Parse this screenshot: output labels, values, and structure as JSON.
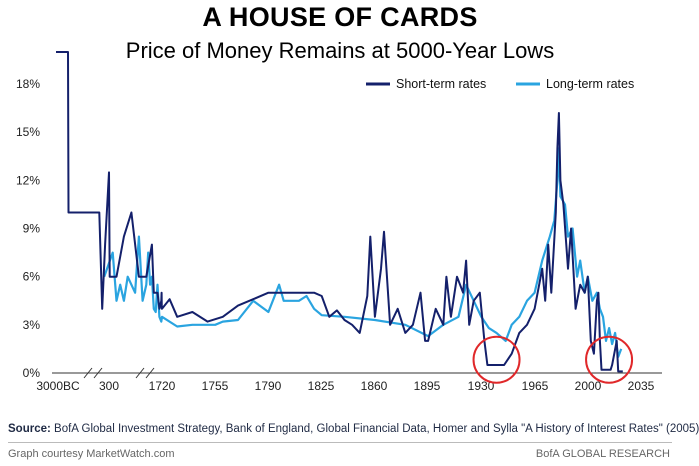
{
  "chart_data": {
    "type": "line",
    "title": "A HOUSE OF CARDS",
    "subtitle": "Price of Money Remains at 5000-Year Lows",
    "xlabel": "",
    "ylabel": "",
    "ylim": [
      0,
      19.5
    ],
    "y_ticks": [
      "0%",
      "3%",
      "6%",
      "9%",
      "12%",
      "15%",
      "18%"
    ],
    "y_tick_values": [
      0,
      3,
      6,
      9,
      12,
      15,
      18
    ],
    "x_ticks": [
      "3000BC",
      "300",
      "1720",
      "1755",
      "1790",
      "1825",
      "1860",
      "1895",
      "1930",
      "1965",
      "2000",
      "2035"
    ],
    "legend": [
      "Short-term rates",
      "Long-term rates"
    ],
    "legend_position": "top-right",
    "grid": false,
    "colors": {
      "short": "#14206b",
      "long": "#2aa4e0",
      "highlight": "#e0282a"
    },
    "series": [
      {
        "name": "Short-term rates",
        "points": [
          [
            -3000,
            20
          ],
          [
            -2300,
            20
          ],
          [
            -2200,
            10
          ],
          [
            -300,
            10
          ],
          [
            0,
            10
          ],
          [
            200,
            10
          ],
          [
            230,
            4
          ],
          [
            260,
            8
          ],
          [
            300,
            12.5
          ],
          [
            320,
            6
          ],
          [
            500,
            6
          ],
          [
            700,
            8.5
          ],
          [
            900,
            10
          ],
          [
            1100,
            6
          ],
          [
            1300,
            6
          ],
          [
            1450,
            8
          ],
          [
            1500,
            5
          ],
          [
            1600,
            5
          ],
          [
            1650,
            4
          ],
          [
            1700,
            4.5
          ],
          [
            1710,
            5
          ],
          [
            1715,
            4
          ],
          [
            1720,
            4
          ],
          [
            1725,
            4.6
          ],
          [
            1730,
            3.5
          ],
          [
            1740,
            3.8
          ],
          [
            1750,
            3.2
          ],
          [
            1760,
            3.5
          ],
          [
            1770,
            4.2
          ],
          [
            1780,
            4.6
          ],
          [
            1790,
            5
          ],
          [
            1800,
            5
          ],
          [
            1810,
            5
          ],
          [
            1820,
            5
          ],
          [
            1825,
            4.8
          ],
          [
            1830,
            3.5
          ],
          [
            1835,
            3.9
          ],
          [
            1840,
            3.3
          ],
          [
            1845,
            3
          ],
          [
            1850,
            2.5
          ],
          [
            1855,
            4.8
          ],
          [
            1857,
            8.5
          ],
          [
            1860,
            3.5
          ],
          [
            1864,
            6.5
          ],
          [
            1866,
            8.8
          ],
          [
            1870,
            3
          ],
          [
            1875,
            4
          ],
          [
            1880,
            2.5
          ],
          [
            1885,
            3
          ],
          [
            1890,
            5
          ],
          [
            1893,
            2
          ],
          [
            1895,
            2
          ],
          [
            1900,
            4
          ],
          [
            1905,
            3
          ],
          [
            1907,
            6
          ],
          [
            1910,
            3.5
          ],
          [
            1914,
            6
          ],
          [
            1918,
            5
          ],
          [
            1920,
            7
          ],
          [
            1922,
            3
          ],
          [
            1925,
            4.5
          ],
          [
            1929,
            5
          ],
          [
            1932,
            2
          ],
          [
            1934,
            0.5
          ],
          [
            1945,
            0.5
          ],
          [
            1950,
            1.2
          ],
          [
            1955,
            2.5
          ],
          [
            1960,
            3
          ],
          [
            1965,
            4
          ],
          [
            1970,
            6.5
          ],
          [
            1972,
            4.5
          ],
          [
            1974,
            8
          ],
          [
            1976,
            5
          ],
          [
            1979,
            10
          ],
          [
            1980,
            14
          ],
          [
            1981,
            16.2
          ],
          [
            1982,
            12
          ],
          [
            1984,
            10.5
          ],
          [
            1987,
            6.5
          ],
          [
            1989,
            9
          ],
          [
            1992,
            4
          ],
          [
            1995,
            5.5
          ],
          [
            1998,
            5
          ],
          [
            2000,
            6
          ],
          [
            2002,
            2
          ],
          [
            2004,
            1.2
          ],
          [
            2006,
            4.5
          ],
          [
            2007,
            5
          ],
          [
            2008,
            2
          ],
          [
            2009,
            0.2
          ],
          [
            2015,
            0.2
          ],
          [
            2016,
            0.5
          ],
          [
            2019,
            2
          ],
          [
            2020,
            0.1
          ],
          [
            2023,
            0.1
          ]
        ]
      },
      {
        "name": "Long-term rates",
        "points": [
          [
            250,
            6
          ],
          [
            400,
            7.5
          ],
          [
            500,
            4.5
          ],
          [
            600,
            5.5
          ],
          [
            700,
            4.5
          ],
          [
            800,
            6
          ],
          [
            900,
            5.5
          ],
          [
            1000,
            5
          ],
          [
            1100,
            8.5
          ],
          [
            1200,
            4.5
          ],
          [
            1300,
            5.5
          ],
          [
            1350,
            7.5
          ],
          [
            1400,
            5.5
          ],
          [
            1450,
            6
          ],
          [
            1500,
            4
          ],
          [
            1550,
            3.8
          ],
          [
            1600,
            5.5
          ],
          [
            1650,
            3.5
          ],
          [
            1700,
            3.2
          ],
          [
            1720,
            3.5
          ],
          [
            1730,
            2.9
          ],
          [
            1740,
            3
          ],
          [
            1755,
            3
          ],
          [
            1760,
            3.2
          ],
          [
            1770,
            3.3
          ],
          [
            1780,
            4.5
          ],
          [
            1790,
            3.8
          ],
          [
            1797,
            5.5
          ],
          [
            1800,
            4.5
          ],
          [
            1810,
            4.5
          ],
          [
            1815,
            4.8
          ],
          [
            1820,
            4
          ],
          [
            1825,
            3.6
          ],
          [
            1840,
            3.5
          ],
          [
            1860,
            3.3
          ],
          [
            1880,
            3
          ],
          [
            1895,
            2.3
          ],
          [
            1905,
            3
          ],
          [
            1915,
            3.5
          ],
          [
            1920,
            5.5
          ],
          [
            1925,
            4.5
          ],
          [
            1930,
            3.5
          ],
          [
            1935,
            2.8
          ],
          [
            1940,
            2.5
          ],
          [
            1946,
            2
          ],
          [
            1950,
            3
          ],
          [
            1955,
            3.5
          ],
          [
            1960,
            4.5
          ],
          [
            1965,
            5
          ],
          [
            1970,
            7
          ],
          [
            1975,
            8.5
          ],
          [
            1978,
            9.5
          ],
          [
            1980,
            12
          ],
          [
            1981,
            14
          ],
          [
            1982,
            11
          ],
          [
            1985,
            10.5
          ],
          [
            1987,
            8.5
          ],
          [
            1990,
            9
          ],
          [
            1993,
            6
          ],
          [
            1995,
            7
          ],
          [
            1998,
            5
          ],
          [
            2000,
            6
          ],
          [
            2003,
            4.5
          ],
          [
            2006,
            5
          ],
          [
            2008,
            4
          ],
          [
            2010,
            3.5
          ],
          [
            2012,
            2
          ],
          [
            2014,
            2.8
          ],
          [
            2016,
            1.8
          ],
          [
            2018,
            2.5
          ],
          [
            2020,
            1
          ],
          [
            2022,
            1.5
          ]
        ]
      }
    ],
    "annotations": [
      {
        "label": "1930s-40s low-rate circle",
        "x_center": 1940,
        "y_center": 1.2
      },
      {
        "label": "2009-2022 low-rate circle",
        "x_center": 2014,
        "y_center": 1.2
      }
    ]
  },
  "footer": {
    "source_label": "Source:",
    "source_text": " BofA Global Investment Strategy, Bank of England, Global Financial Data, Homer and Sylla \"A History of Interest Rates\" (2005)",
    "credit": "Graph courtesy MarketWatch.com",
    "brand": "BofA GLOBAL RESEARCH"
  }
}
